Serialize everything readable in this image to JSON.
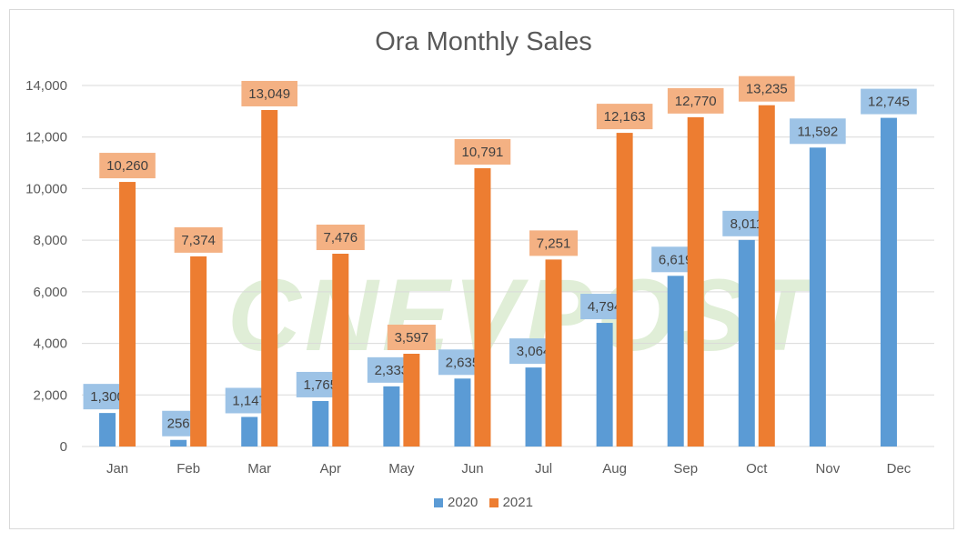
{
  "chart_data": {
    "type": "bar",
    "title": "Ora Monthly Sales",
    "categories": [
      "Jan",
      "Feb",
      "Mar",
      "Apr",
      "May",
      "Jun",
      "Jul",
      "Aug",
      "Sep",
      "Oct",
      "Nov",
      "Dec"
    ],
    "series": [
      {
        "name": "2020",
        "color": "#5b9bd5",
        "label_bg": "#9dc3e6",
        "values": [
          1300,
          256,
          1147,
          1765,
          2333,
          2635,
          3064,
          4794,
          6619,
          8011,
          11592,
          12745
        ]
      },
      {
        "name": "2021",
        "color": "#ed7d31",
        "label_bg": "#f4b183",
        "values": [
          10260,
          7374,
          13049,
          7476,
          3597,
          10791,
          7251,
          12163,
          12770,
          13235,
          null,
          null
        ]
      }
    ],
    "ylim": [
      0,
      14000
    ],
    "yticks": [
      0,
      2000,
      4000,
      6000,
      8000,
      10000,
      12000,
      14000
    ],
    "grid": true,
    "data_labels": true,
    "legend": "bottom",
    "xlabel": "",
    "ylabel": ""
  },
  "watermark": "CNEVPOST"
}
